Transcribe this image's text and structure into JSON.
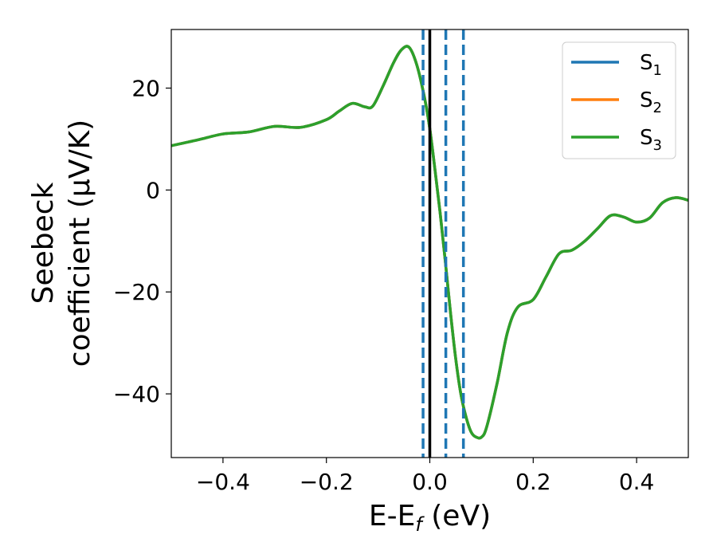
{
  "chart_data": {
    "type": "line",
    "xlabel": "E-E",
    "xlabel_sub": "f",
    "xlabel_unit": " (eV)",
    "ylabel_line1": "Seebeck",
    "ylabel_line2": "coefficient  (μV/K)",
    "xlim": [
      -0.5,
      0.5
    ],
    "ylim": [
      -52.5,
      31.5
    ],
    "grid": false,
    "legend_position": "top-right",
    "x_ticks": [
      -0.4,
      -0.2,
      0.0,
      0.2,
      0.4
    ],
    "x_tick_labels": [
      "−0.4",
      "−0.2",
      "0.0",
      "0.2",
      "0.4"
    ],
    "y_ticks": [
      -40,
      -20,
      0,
      20
    ],
    "y_tick_labels": [
      "−40",
      "−20",
      "0",
      "20"
    ],
    "x": [
      -0.5,
      -0.45,
      -0.4,
      -0.35,
      -0.3,
      -0.25,
      -0.2,
      -0.175,
      -0.15,
      -0.125,
      -0.11,
      -0.09,
      -0.07,
      -0.055,
      -0.04,
      -0.025,
      -0.01,
      0.0,
      0.01,
      0.02,
      0.03,
      0.04,
      0.05,
      0.06,
      0.07,
      0.08,
      0.09,
      0.1,
      0.11,
      0.13,
      0.15,
      0.17,
      0.2,
      0.225,
      0.25,
      0.275,
      0.3,
      0.325,
      0.35,
      0.375,
      0.4,
      0.425,
      0.45,
      0.475,
      0.5
    ],
    "series": [
      {
        "name": "S",
        "name_sub": "1",
        "color": "#1f77b4",
        "values": [
          8.7,
          9.8,
          11.0,
          11.4,
          12.5,
          12.3,
          13.8,
          15.5,
          17.0,
          16.3,
          16.5,
          20.5,
          25.0,
          27.5,
          28.0,
          24.5,
          18.0,
          12.0,
          4.0,
          -4.5,
          -14.0,
          -24.0,
          -33.0,
          -40.0,
          -44.5,
          -47.5,
          -48.5,
          -48.5,
          -46.5,
          -38.0,
          -28.0,
          -23.0,
          -21.5,
          -17.0,
          -12.5,
          -11.8,
          -10.0,
          -7.5,
          -5.0,
          -5.3,
          -6.3,
          -5.5,
          -2.5,
          -1.5,
          -2.0
        ]
      },
      {
        "name": "S",
        "name_sub": "2",
        "color": "#ff7f0e",
        "values": [
          8.7,
          9.8,
          11.0,
          11.4,
          12.5,
          12.3,
          13.8,
          15.5,
          17.0,
          16.3,
          16.5,
          20.5,
          25.0,
          27.5,
          28.0,
          24.5,
          18.0,
          12.0,
          4.0,
          -4.5,
          -14.0,
          -24.0,
          -33.0,
          -40.0,
          -44.5,
          -47.5,
          -48.5,
          -48.5,
          -46.5,
          -38.0,
          -28.0,
          -23.0,
          -21.5,
          -17.0,
          -12.5,
          -11.8,
          -10.0,
          -7.5,
          -5.0,
          -5.3,
          -6.3,
          -5.5,
          -2.5,
          -1.5,
          -2.0
        ]
      },
      {
        "name": "S",
        "name_sub": "3",
        "color": "#2ca02c",
        "values": [
          8.7,
          9.8,
          11.0,
          11.4,
          12.5,
          12.3,
          13.8,
          15.5,
          17.0,
          16.3,
          16.5,
          20.5,
          25.0,
          27.5,
          28.0,
          24.5,
          18.0,
          12.0,
          4.0,
          -4.5,
          -14.0,
          -24.0,
          -33.0,
          -40.0,
          -44.5,
          -47.5,
          -48.5,
          -48.5,
          -46.5,
          -38.0,
          -28.0,
          -23.0,
          -21.5,
          -17.0,
          -12.5,
          -11.8,
          -10.0,
          -7.5,
          -5.0,
          -5.3,
          -6.3,
          -5.5,
          -2.5,
          -1.5,
          -2.0
        ]
      }
    ],
    "vlines": [
      {
        "x": -0.013,
        "style": "dashed",
        "color": "#1f77b4"
      },
      {
        "x": 0.031,
        "style": "dashed",
        "color": "#1f77b4"
      },
      {
        "x": 0.065,
        "style": "dashed",
        "color": "#1f77b4"
      },
      {
        "x": 0.0,
        "style": "solid",
        "color": "#000000"
      }
    ]
  }
}
